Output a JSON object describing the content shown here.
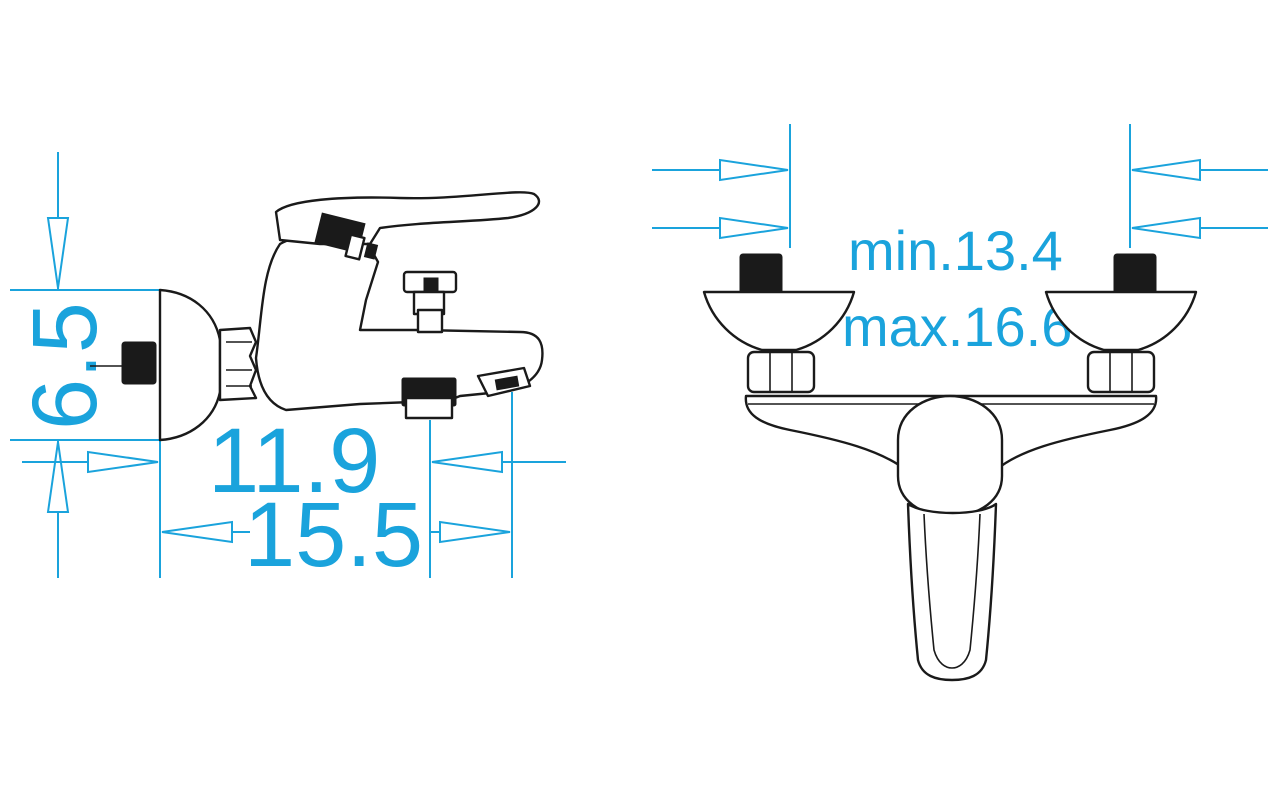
{
  "dimensions": {
    "height_side": "6.5",
    "depth_spout": "11.9",
    "depth_total": "15.5",
    "centers_min": "min.13.4",
    "centers_max": "max.16.6"
  },
  "colors": {
    "dimension": "#1aa3dc",
    "outline": "#1a1a1a",
    "background": "#ffffff"
  }
}
